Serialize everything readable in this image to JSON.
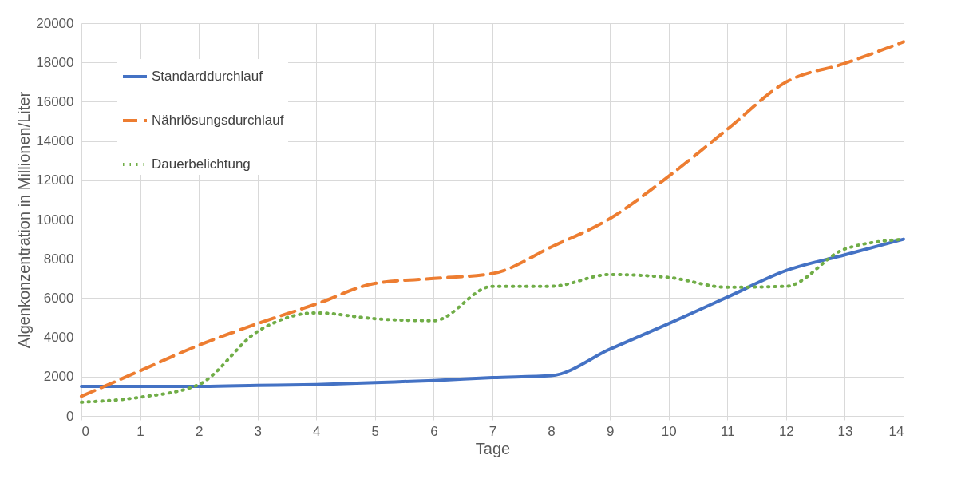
{
  "chart_data": {
    "type": "line",
    "xlabel": "Tage",
    "ylabel": "Algenkonzentration in Millionen/Liter",
    "x": [
      0,
      1,
      2,
      3,
      4,
      5,
      6,
      7,
      8,
      9,
      10,
      11,
      12,
      13,
      14
    ],
    "series": [
      {
        "name": "Standarddurchlauf",
        "color": "#4472c4",
        "line_style": "solid",
        "values": [
          1500,
          1500,
          1500,
          1550,
          1600,
          1700,
          1800,
          1950,
          2050,
          3400,
          4700,
          6050,
          7400,
          8200,
          9000
        ]
      },
      {
        "name": "Nährlösungsdurchlauf",
        "color": "#ed7d31",
        "line_style": "dashed",
        "values": [
          1000,
          2300,
          3600,
          4700,
          5700,
          6750,
          7000,
          7250,
          8600,
          10050,
          12200,
          14600,
          17000,
          17950,
          19050
        ]
      },
      {
        "name": "Dauerbelichtung",
        "color": "#70ad47",
        "line_style": "dotted",
        "values": [
          700,
          950,
          1600,
          4300,
          5250,
          4950,
          4850,
          6600,
          6600,
          7200,
          7050,
          6550,
          6600,
          8500,
          9000
        ]
      }
    ],
    "xlim": [
      0,
      14
    ],
    "xticks": [
      0,
      1,
      2,
      3,
      4,
      5,
      6,
      7,
      8,
      9,
      10,
      11,
      12,
      13,
      14
    ],
    "ylim": [
      0,
      20000
    ],
    "yticks": [
      0,
      2000,
      4000,
      6000,
      8000,
      10000,
      12000,
      14000,
      16000,
      18000,
      20000
    ],
    "grid": true,
    "legend": "top left",
    "marker": "none"
  }
}
